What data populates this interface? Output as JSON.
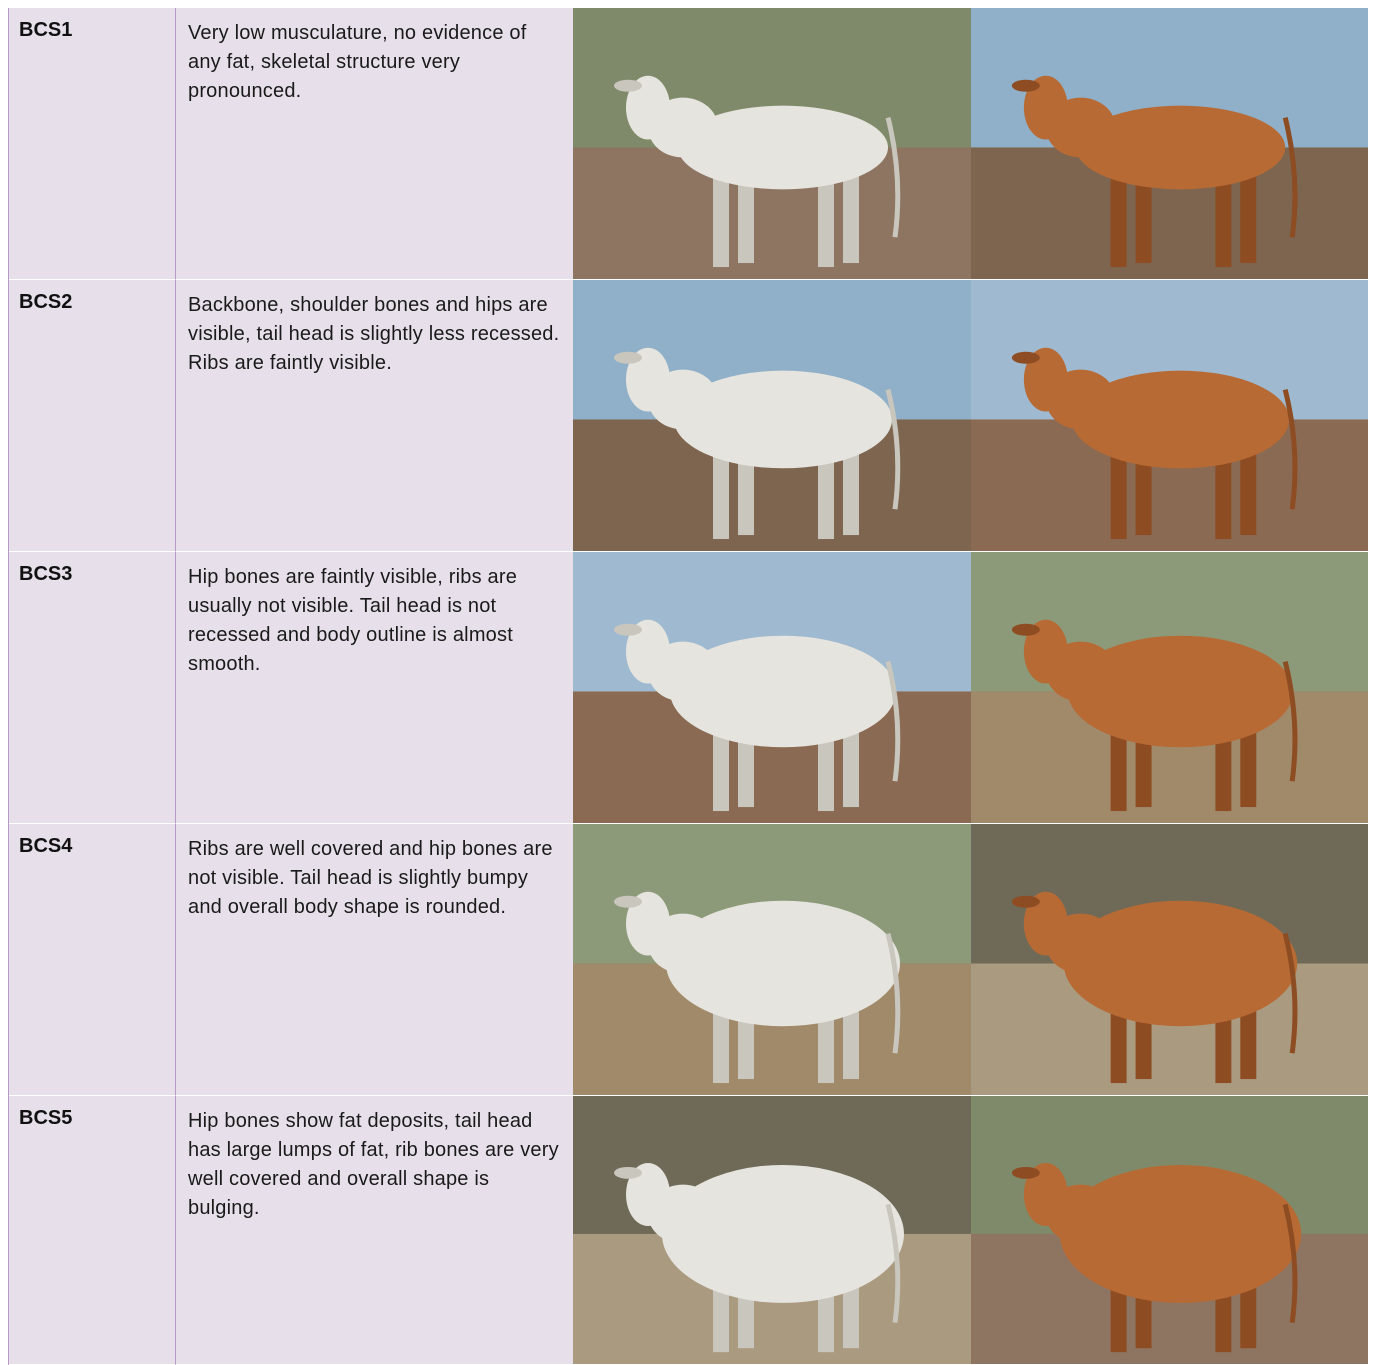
{
  "table": {
    "rows": [
      {
        "label": "BCS1",
        "description": "Very low musculature, no evidence of any fat, skeletal structure very pronounced."
      },
      {
        "label": "BCS2",
        "description": "Backbone, shoulder bones and hips are visible, tail head is slightly less recessed. Ribs are faintly visible."
      },
      {
        "label": "BCS3",
        "description": "Hip bones are faintly visible, ribs are usually not visible. Tail head is not recessed and body outline is almost smooth."
      },
      {
        "label": "BCS4",
        "description": "Ribs are well covered and hip bones are not visible. Tail head is slightly bumpy and overall body shape is rounded."
      },
      {
        "label": "BCS5",
        "description": "Hip bones show fat deposits, tail head has large lumps of fat, rib bones are very well covered and overall shape is bulging."
      }
    ]
  }
}
